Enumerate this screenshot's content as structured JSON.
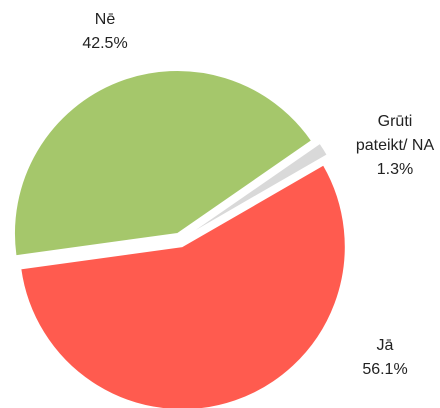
{
  "chart_data": {
    "type": "pie",
    "categories": [
      "Jā",
      "Nē",
      "Grūti pateikt/ NA"
    ],
    "values": [
      56.1,
      42.5,
      1.3
    ],
    "value_labels": [
      "56.1%",
      "42.5%",
      "1.3%"
    ],
    "colors": [
      "#ff5b4f",
      "#a5c76b",
      "#d9d9d9"
    ]
  }
}
